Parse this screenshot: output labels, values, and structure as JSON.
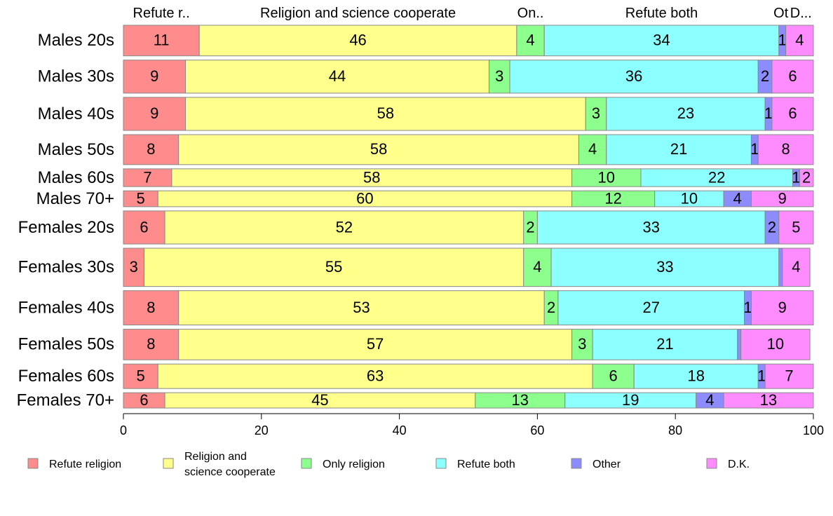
{
  "chart_data": {
    "type": "bar",
    "orientation": "horizontal",
    "stacked": true,
    "categories": [
      "Males 20s",
      "Males 30s",
      "Males 40s",
      "Males 50s",
      "Males 60s",
      "Males 70+",
      "Females 20s",
      "Females 30s",
      "Females 40s",
      "Females 50s",
      "Females 60s",
      "Females 70+"
    ],
    "row_weights": [
      1.0,
      1.08,
      1.08,
      0.98,
      0.58,
      0.52,
      1.08,
      1.25,
      1.12,
      1.0,
      0.8,
      0.5
    ],
    "series": [
      {
        "name": "Refute religion",
        "short_label": "Refute r..",
        "color": "#ff8c8c",
        "values": [
          11,
          9,
          9,
          8,
          7,
          5,
          6,
          3,
          8,
          8,
          5,
          6
        ]
      },
      {
        "name": "Religion and science cooperate",
        "legend_lines": [
          "Religion and",
          "science cooperate"
        ],
        "short_label": "Religion and science cooperate",
        "color": "#ffff8c",
        "values": [
          46,
          44,
          58,
          58,
          58,
          60,
          52,
          55,
          53,
          57,
          63,
          45
        ]
      },
      {
        "name": "Only religion",
        "short_label": "On..",
        "color": "#8cff8c",
        "values": [
          4,
          3,
          3,
          4,
          10,
          12,
          2,
          4,
          2,
          3,
          6,
          13
        ]
      },
      {
        "name": "Refute both",
        "short_label": "Refute both",
        "color": "#8cffff",
        "values": [
          34,
          36,
          23,
          21,
          22,
          10,
          33,
          33,
          27,
          21,
          18,
          19
        ]
      },
      {
        "name": "Other",
        "short_label": "Ot",
        "color": "#8c8cff",
        "values": [
          1,
          2,
          1,
          1,
          1,
          4,
          2,
          0.5,
          1,
          0.5,
          1,
          4
        ]
      },
      {
        "name": "D.K.",
        "short_label": "D...",
        "color": "#ff8cff",
        "values": [
          4,
          6,
          6,
          8,
          2,
          9,
          5,
          4,
          9,
          10,
          7,
          13
        ]
      }
    ],
    "value_labels": [
      [
        "11",
        "46",
        "4",
        "34",
        "1",
        "4"
      ],
      [
        "9",
        "44",
        "3",
        "36",
        "2",
        "6"
      ],
      [
        "9",
        "58",
        "3",
        "23",
        "1",
        "6"
      ],
      [
        "8",
        "58",
        "4",
        "21",
        "1",
        "8"
      ],
      [
        "7",
        "58",
        "10",
        "22",
        "1",
        "2"
      ],
      [
        "5",
        "60",
        "12",
        "10",
        "4",
        "9"
      ],
      [
        "6",
        "52",
        "2",
        "33",
        "2",
        "5"
      ],
      [
        "3",
        "55",
        "4",
        "33",
        "",
        "4"
      ],
      [
        "8",
        "53",
        "2",
        "27",
        "1",
        "9"
      ],
      [
        "8",
        "57",
        "3",
        "21",
        "",
        "10"
      ],
      [
        "5",
        "63",
        "6",
        "18",
        "1",
        "7"
      ],
      [
        "6",
        "45",
        "13",
        "19",
        "4",
        "13"
      ]
    ],
    "xlim": [
      0,
      100
    ],
    "x_ticks": [
      0,
      20,
      40,
      60,
      80,
      100
    ],
    "xlabel": "",
    "ylabel": "",
    "title": "",
    "grid": false,
    "legend_position": "bottom"
  }
}
